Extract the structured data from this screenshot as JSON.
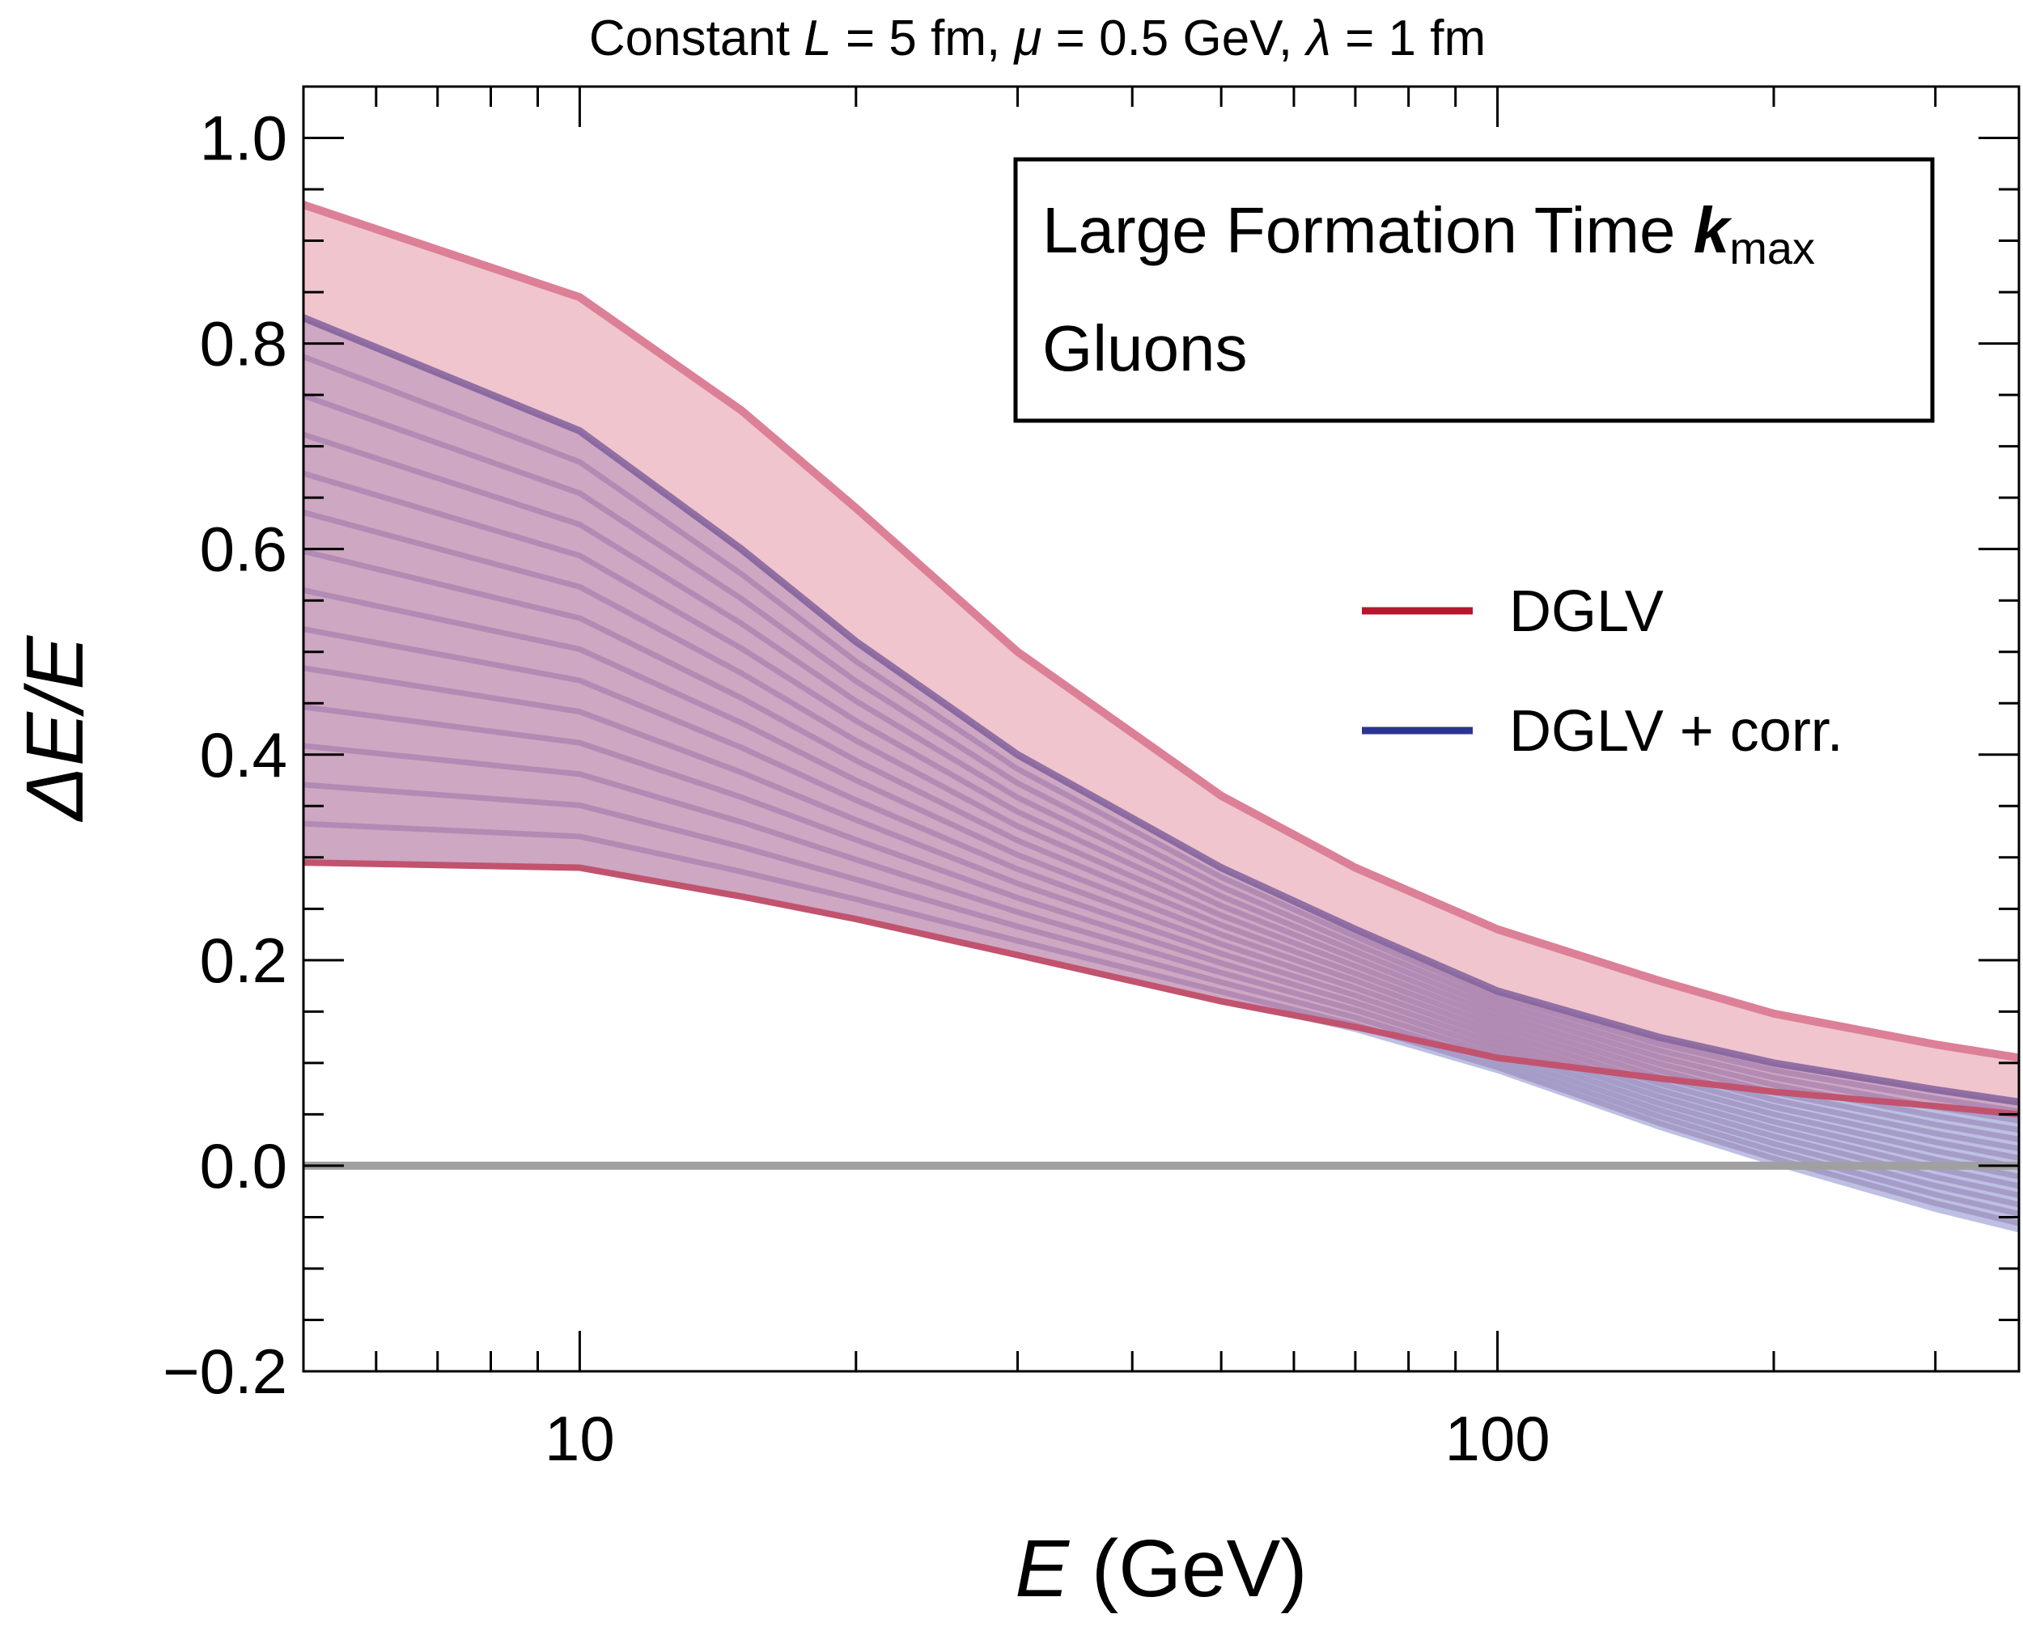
{
  "chart_data": {
    "type": "area",
    "title": {
      "prefix": "Constant ",
      "L_var": "L",
      "L_rest": " = 5 fm, ",
      "mu_var": "μ",
      "mu_rest": " = 0.5 GeV, ",
      "lambda_var": "λ",
      "lambda_rest": " = 1 fm"
    },
    "xlabel": {
      "var": "E",
      "rest": " (GeV)"
    },
    "ylabel": "ΔE/E",
    "x_scale": "log",
    "xlim": [
      5,
      370
    ],
    "ylim": [
      -0.2,
      1.05
    ],
    "x_ticks": [
      {
        "value": 10,
        "label": "10"
      },
      {
        "value": 100,
        "label": "100"
      }
    ],
    "y_ticks": [
      {
        "value": -0.2,
        "label": "−0.2"
      },
      {
        "value": 0.0,
        "label": "0.0"
      },
      {
        "value": 0.2,
        "label": "0.2"
      },
      {
        "value": 0.4,
        "label": "0.4"
      },
      {
        "value": 0.6,
        "label": "0.6"
      },
      {
        "value": 0.8,
        "label": "0.8"
      },
      {
        "value": 1.0,
        "label": "1.0"
      }
    ],
    "x": [
      5,
      10,
      15,
      20,
      30,
      50,
      70,
      100,
      150,
      200,
      300,
      370
    ],
    "dglv_upper": [
      0.935,
      0.845,
      0.735,
      0.64,
      0.5,
      0.36,
      0.29,
      0.23,
      0.18,
      0.148,
      0.118,
      0.105
    ],
    "dglv_lower": [
      0.295,
      0.29,
      0.262,
      0.24,
      0.205,
      0.16,
      0.135,
      0.105,
      0.085,
      0.072,
      0.058,
      0.05
    ],
    "corr_upper": [
      0.825,
      0.715,
      0.6,
      0.51,
      0.4,
      0.29,
      0.23,
      0.17,
      0.125,
      0.1,
      0.074,
      0.062
    ],
    "corr_lower": [
      0.295,
      0.29,
      0.262,
      0.24,
      0.205,
      0.16,
      0.13,
      0.09,
      0.035,
      0.0,
      -0.045,
      -0.065
    ],
    "legend": {
      "position": "right-middle",
      "entries": [
        {
          "label": "DGLV",
          "color": "#b5172f"
        },
        {
          "label": "DGLV + corr.",
          "color": "#2b3590"
        }
      ]
    },
    "annotation_box": {
      "title_text": "Large Formation Time ",
      "title_k": "k",
      "title_sub": "max",
      "subtitle": "Gluons"
    },
    "colors": {
      "dglv_fill": "#f0c5ce",
      "dglv_line": "#dc8097",
      "dglv_lower_line": "#c1536f",
      "corr_fill": "#b9bde0",
      "corr_line": "#7a5a98",
      "overlap_fill": "#cea7c2",
      "zero_line": "#a0a0a0"
    }
  }
}
